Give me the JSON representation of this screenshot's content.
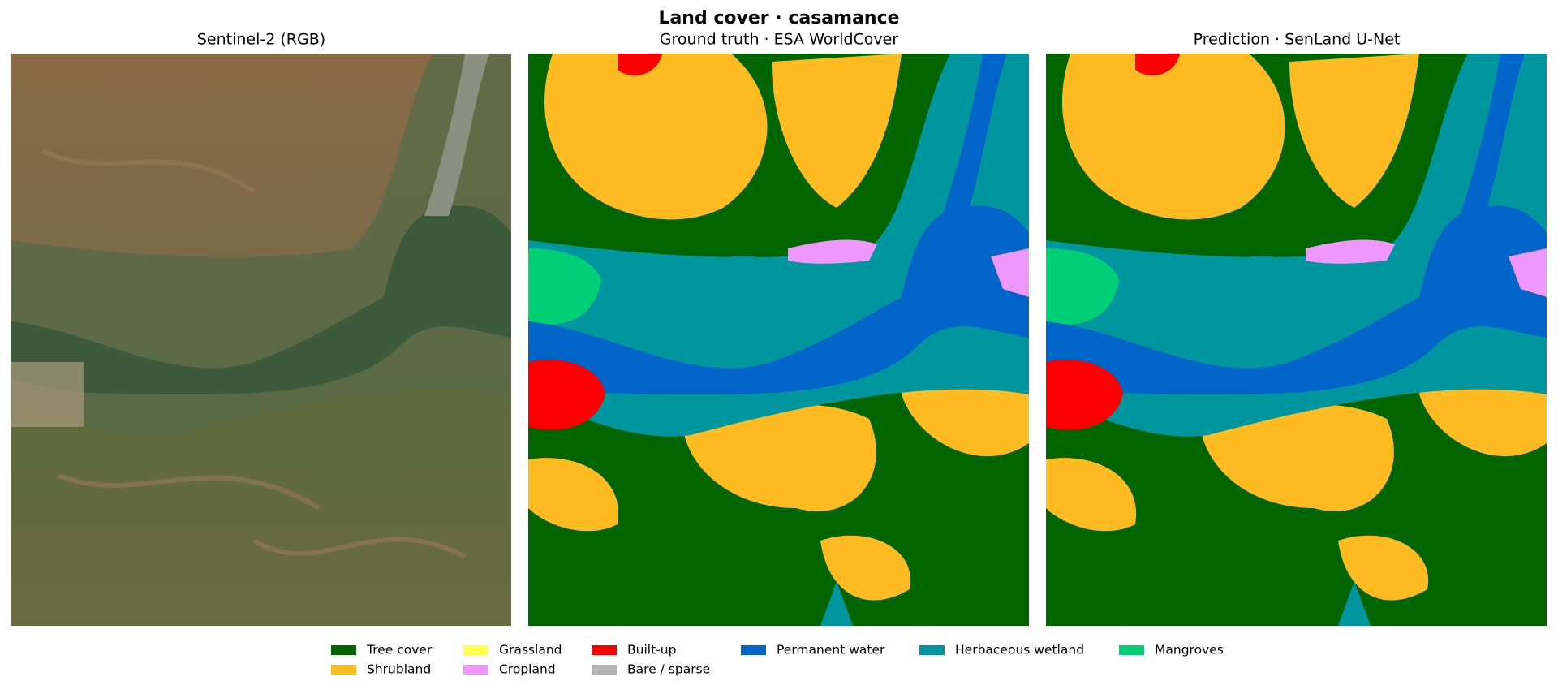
{
  "title": "Land cover · casamance",
  "panels": [
    {
      "title": "Sentinel-2 (RGB)"
    },
    {
      "title": "Ground truth · ESA WorldCover"
    },
    {
      "title": "Prediction · SenLand U-Net"
    }
  ],
  "legend": [
    {
      "label": "Tree cover",
      "color": "#006400"
    },
    {
      "label": "Shrubland",
      "color": "#ffbb22"
    },
    {
      "label": "Grassland",
      "color": "#ffff4c"
    },
    {
      "label": "Cropland",
      "color": "#f096ff"
    },
    {
      "label": "Built-up",
      "color": "#fa0000"
    },
    {
      "label": "Bare / sparse",
      "color": "#b4b4b4"
    },
    {
      "label": "Permanent water",
      "color": "#0064c8"
    },
    {
      "label": "Herbaceous wetland",
      "color": "#0096a0"
    },
    {
      "label": "Mangroves",
      "color": "#00cf75"
    }
  ]
}
